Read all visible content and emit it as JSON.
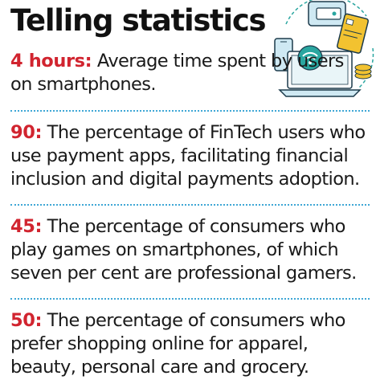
{
  "header": {
    "title": "Telling statistics"
  },
  "colors": {
    "key_highlight": "#d1242f",
    "divider": "#3fa7d6",
    "illustration_teal": "#2aa6a0",
    "illustration_yellow": "#f2c230",
    "illustration_lightblue": "#cfe9f3"
  },
  "illustration": {
    "icons": [
      "laptop-icon",
      "wifi-icon",
      "credit-card-icon",
      "wallet-icon",
      "smartphone-icon"
    ]
  },
  "stats": [
    {
      "key": "4 hours:",
      "text": "Average time spent by users on smartphones."
    },
    {
      "key": "90:",
      "text": "The percentage of FinTech users who use payment apps, facilitating financial inclusion and digital payments adoption."
    },
    {
      "key": "45:",
      "text": "The percentage of consumers who play games on smartphones, of which seven per cent are professional gamers."
    },
    {
      "key": "50:",
      "text": "The percentage of consumers who prefer shopping online for apparel, beauty, personal care and grocery."
    }
  ]
}
